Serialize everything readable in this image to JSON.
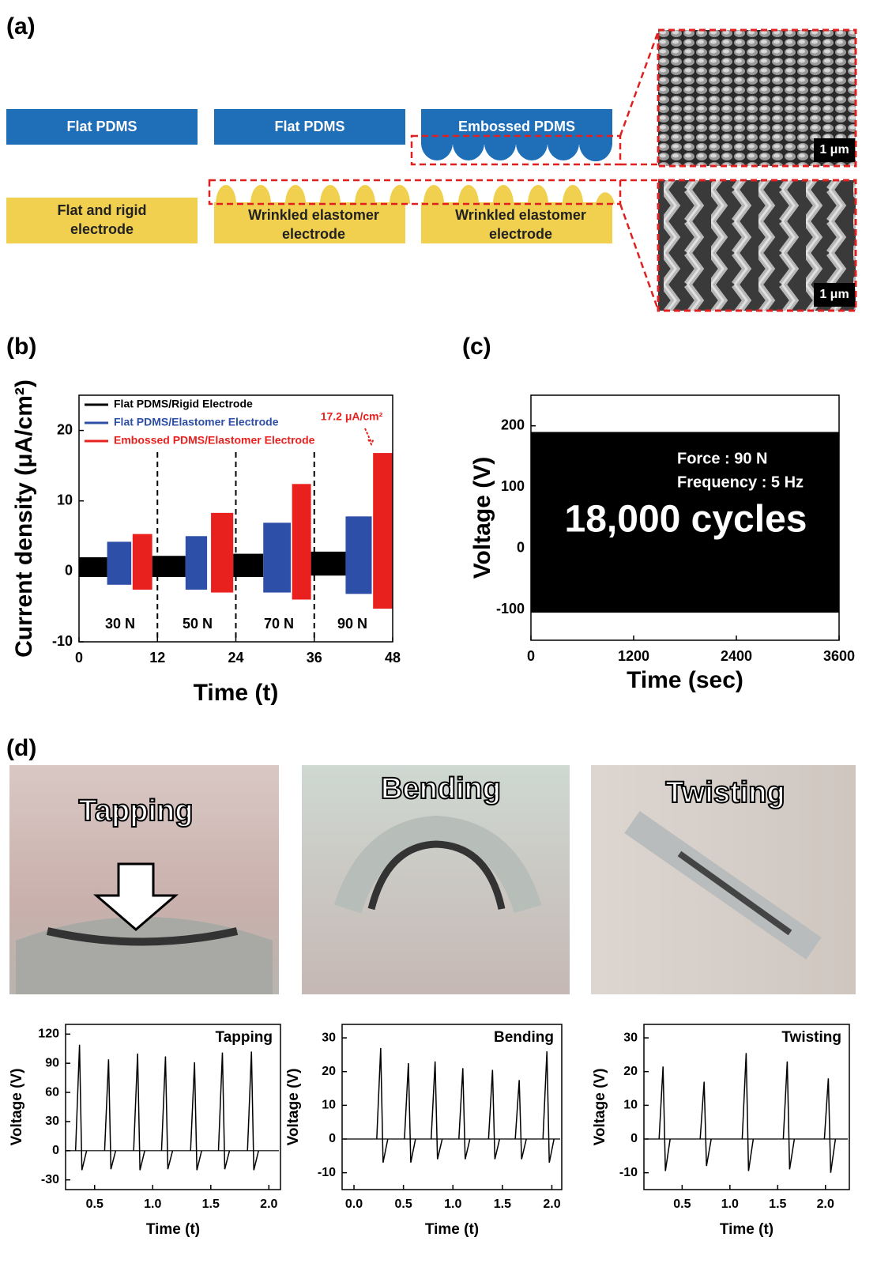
{
  "panel_labels": [
    "(a)",
    "(b)",
    "(c)",
    "(d)"
  ],
  "diagram": {
    "layers": [
      "Flat PDMS",
      "Flat PDMS",
      "Embossed PDMS"
    ],
    "electrodes": [
      [
        "Flat and rigid",
        "electrode"
      ],
      [
        "Wrinkled elastomer",
        "electrode"
      ],
      [
        "Wrinkled elastomer",
        "electrode"
      ]
    ],
    "scale_bars": [
      "1 μm",
      "1 μm"
    ]
  },
  "photos": [
    "Tapping",
    "Bending",
    "Twisting"
  ],
  "chart_data": [
    {
      "type": "band",
      "xlabel": "Time (t)",
      "ylabel": "Current density (μA/cm²)",
      "xlim": [
        0,
        48
      ],
      "xticks": [
        0,
        12,
        24,
        36,
        48
      ],
      "ylim": [
        -10,
        25
      ],
      "yticks": [
        -10,
        0,
        10,
        20
      ],
      "vlines": [
        12,
        24,
        36
      ],
      "legend": "upper left",
      "annotations": [
        "30 N",
        "50 N",
        "70 N",
        "90 N",
        "17.2 μA/cm²"
      ],
      "series": [
        {
          "name": "Flat PDMS/Rigid Electrode",
          "color": "#000000",
          "x": [
            0,
            11.2,
            23.6,
            35.5
          ],
          "x_end": [
            4.3,
            16.3,
            28.2,
            40.8
          ],
          "low": [
            -0.8,
            -0.8,
            -0.8,
            -0.6
          ],
          "high": [
            2.0,
            2.2,
            2.5,
            2.8
          ]
        },
        {
          "name": "Flat PDMS/Elastomer Electrode",
          "color": "#2e4fa8",
          "x": [
            4.3,
            16.3,
            28.2,
            40.8
          ],
          "x_end": [
            8,
            19.6,
            32.4,
            44.8
          ],
          "low": [
            -1.9,
            -2.6,
            -3,
            -3.2
          ],
          "high": [
            4.2,
            5.0,
            6.9,
            7.8
          ]
        },
        {
          "name": "Embossed PDMS/Elastomer Electrode",
          "color": "#e8201e",
          "x": [
            8.2,
            20.2,
            32.6,
            45
          ],
          "x_end": [
            11.2,
            23.6,
            35.5,
            48
          ],
          "low": [
            -2.6,
            -3,
            -4,
            -5.3
          ],
          "high": [
            5.3,
            8.3,
            12.4,
            16.8
          ]
        }
      ]
    },
    {
      "type": "band",
      "xlabel": "Time (sec)",
      "ylabel": "Voltage (V)",
      "xlim": [
        0,
        3600
      ],
      "xticks": [
        0,
        1200,
        2400,
        3600
      ],
      "ylim": [
        -150,
        250
      ],
      "yticks": [
        -100,
        0,
        100,
        200
      ],
      "annotations": [
        "Force : 90 N",
        "Frequency : 5 Hz",
        "18,000 cycles"
      ],
      "series": [
        {
          "color": "#000000",
          "x": [
            0
          ],
          "x_end": [
            3600
          ],
          "low": [
            -105
          ],
          "high": [
            190
          ]
        }
      ]
    },
    {
      "type": "spike",
      "label": "Tapping",
      "xlabel": "Time (t)",
      "ylabel": "Voltage (V)",
      "xlim": [
        0.25,
        2.1
      ],
      "xticks": [
        0.5,
        {
          "value": 1,
          "label": "1.0"
        },
        1.5,
        {
          "value": 2,
          "label": "2.0"
        }
      ],
      "ylim": [
        -40,
        130
      ],
      "yticks": [
        -30,
        0,
        30,
        60,
        90,
        120
      ],
      "x": [
        0.37,
        0.62,
        0.87,
        1.11,
        1.36,
        1.6,
        1.85
      ],
      "values": [
        109,
        94,
        100,
        97,
        91,
        101,
        102
      ],
      "dips": [
        -20,
        -19,
        -20,
        -19,
        -20,
        -19,
        -20
      ]
    },
    {
      "type": "spike",
      "label": "Bending",
      "xlabel": "Time (t)",
      "ylabel": "Voltage (V)",
      "xlim": [
        -0.12,
        2.1
      ],
      "xticks": [
        {
          "value": 0,
          "label": "0.0"
        },
        0.5,
        {
          "value": 1,
          "label": "1.0"
        },
        1.5,
        {
          "value": 2,
          "label": "2.0"
        }
      ],
      "ylim": [
        -15,
        34
      ],
      "yticks": [
        -10,
        0,
        10,
        20,
        30
      ],
      "x": [
        0.27,
        0.55,
        0.82,
        1.1,
        1.4,
        1.67,
        1.95
      ],
      "values": [
        27,
        22.5,
        23,
        21,
        20.5,
        17.5,
        26
      ],
      "dips": [
        -7,
        -7,
        -6,
        -6,
        -6,
        -6,
        -7
      ]
    },
    {
      "type": "spike",
      "label": "Twisting",
      "xlabel": "Time (t)",
      "ylabel": "Voltage (V)",
      "xlim": [
        0.1,
        2.25
      ],
      "xticks": [
        0.5,
        {
          "value": 1,
          "label": "1.0"
        },
        1.5,
        {
          "value": 2,
          "label": "2.0"
        }
      ],
      "ylim": [
        -15,
        34
      ],
      "yticks": [
        -10,
        0,
        10,
        20,
        30
      ],
      "x": [
        0.3,
        0.73,
        1.17,
        1.6,
        2.03
      ],
      "values": [
        21.5,
        17,
        25.5,
        23,
        18
      ],
      "dips": [
        -9.5,
        -8,
        -9.5,
        -9,
        -10
      ]
    }
  ]
}
